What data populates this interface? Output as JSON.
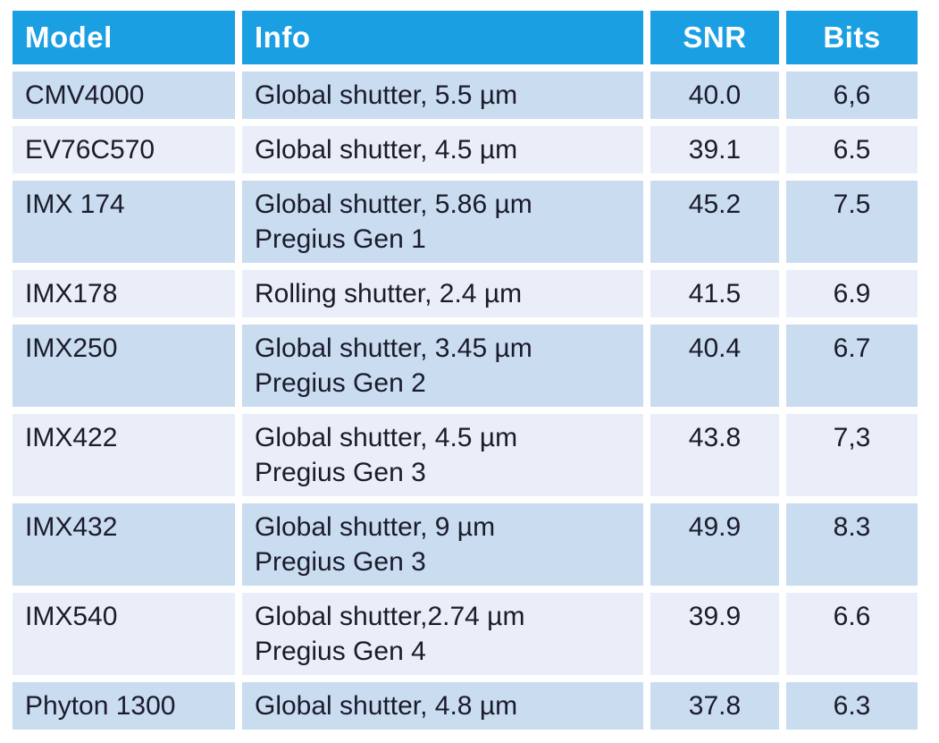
{
  "table": {
    "columns": [
      {
        "key": "model",
        "label": "Model"
      },
      {
        "key": "info",
        "label": "Info"
      },
      {
        "key": "snr",
        "label": "SNR"
      },
      {
        "key": "bits",
        "label": "Bits"
      }
    ],
    "rows": [
      {
        "model": "CMV4000",
        "info": [
          "Global shutter, 5.5 µm"
        ],
        "snr": "40.0",
        "bits": "6,6"
      },
      {
        "model": "EV76C570",
        "info": [
          "Global shutter, 4.5 µm"
        ],
        "snr": "39.1",
        "bits": "6.5"
      },
      {
        "model": "IMX 174",
        "info": [
          "Global shutter, 5.86 µm",
          "Pregius Gen 1"
        ],
        "snr": "45.2",
        "bits": "7.5"
      },
      {
        "model": "IMX178",
        "info": [
          "Rolling shutter, 2.4 µm"
        ],
        "snr": "41.5",
        "bits": "6.9"
      },
      {
        "model": "IMX250",
        "info": [
          "Global shutter, 3.45 µm",
          "Pregius Gen 2"
        ],
        "snr": "40.4",
        "bits": "6.7"
      },
      {
        "model": "IMX422",
        "info": [
          "Global shutter, 4.5 µm",
          "Pregius Gen 3"
        ],
        "snr": "43.8",
        "bits": "7,3"
      },
      {
        "model": "IMX432",
        "info": [
          "Global shutter, 9 µm",
          "Pregius Gen 3"
        ],
        "snr": "49.9",
        "bits": "8.3"
      },
      {
        "model": "IMX540",
        "info": [
          "Global shutter,2.74 µm",
          "Pregius Gen 4"
        ],
        "snr": "39.9",
        "bits": "6.6"
      },
      {
        "model": "Phyton 1300",
        "info": [
          "Global shutter, 4.8 µm"
        ],
        "snr": "37.8",
        "bits": "6.3"
      }
    ],
    "colors": {
      "page_bg": "#ffffff",
      "header_bg": "#1A9FE3",
      "header_text": "#ffffff",
      "row_odd_bg": "#C9DCF0",
      "row_even_bg": "#E9EEF8",
      "cell_text": "#1b1b2b"
    }
  }
}
